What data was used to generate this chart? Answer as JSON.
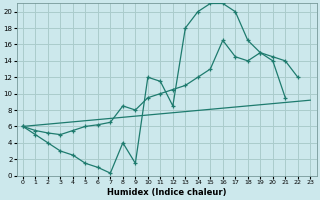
{
  "xlabel": "Humidex (Indice chaleur)",
  "bg_color": "#cce8ec",
  "grid_color": "#aacccc",
  "line_color": "#1e7b6e",
  "xlim": [
    -0.5,
    23.5
  ],
  "ylim": [
    0,
    21
  ],
  "xticks": [
    0,
    1,
    2,
    3,
    4,
    5,
    6,
    7,
    8,
    9,
    10,
    11,
    12,
    13,
    14,
    15,
    16,
    17,
    18,
    19,
    20,
    21,
    22,
    23
  ],
  "yticks": [
    0,
    2,
    4,
    6,
    8,
    10,
    12,
    14,
    16,
    18,
    20
  ],
  "curve1_x": [
    0,
    1,
    2,
    3,
    4,
    5,
    6,
    7,
    8,
    9,
    10,
    11,
    12,
    13,
    14,
    15,
    16,
    17,
    18,
    19,
    20,
    21
  ],
  "curve1_y": [
    6,
    5,
    4,
    3,
    2.5,
    1.5,
    1.0,
    0.3,
    4.0,
    1.5,
    12,
    11.5,
    8.5,
    18,
    20,
    21,
    21,
    20,
    16.5,
    15,
    14,
    9.5
  ],
  "curve2_x": [
    0,
    1,
    2,
    3,
    4,
    5,
    6,
    7,
    8,
    9,
    10,
    11,
    12,
    13,
    14,
    15,
    16,
    17,
    18,
    19,
    20,
    21,
    22
  ],
  "curve2_y": [
    6,
    5.5,
    5.2,
    5.0,
    5.5,
    6.0,
    6.2,
    6.5,
    8.5,
    8.0,
    9.5,
    10.0,
    10.5,
    11.0,
    12.0,
    13.0,
    16.5,
    14.5,
    14.0,
    15.0,
    14.5,
    14.0,
    12.0
  ],
  "curve3_x": [
    0,
    23
  ],
  "curve3_y": [
    6,
    9.2
  ]
}
